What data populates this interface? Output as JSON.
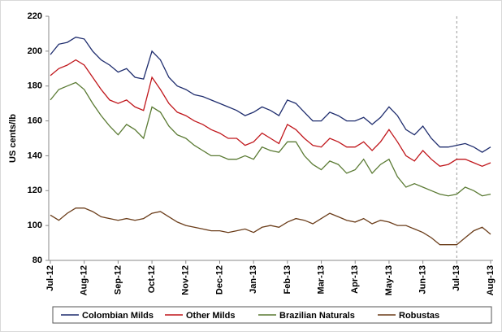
{
  "chart_data": {
    "type": "line",
    "y_label": "US cents/lb",
    "categories": [
      "Jul-12",
      null,
      null,
      null,
      "Aug-12",
      null,
      null,
      null,
      "Sep-12",
      null,
      null,
      null,
      "Oct-12",
      null,
      null,
      null,
      "Nov-12",
      null,
      null,
      null,
      "Dec-12",
      null,
      null,
      null,
      "Jan-13",
      null,
      null,
      null,
      "Feb-13",
      null,
      null,
      null,
      "Mar-13",
      null,
      null,
      null,
      "Apr-13",
      null,
      null,
      null,
      "May-13",
      null,
      null,
      null,
      "Jun-13",
      null,
      null,
      null,
      "Jul-13",
      null,
      null,
      null,
      "Aug-13"
    ],
    "series": [
      {
        "name": "Colombian Milds",
        "color": "#1f2d6e",
        "values": [
          198,
          204,
          205,
          208,
          207,
          200,
          195,
          192,
          188,
          190,
          185,
          184,
          200,
          195,
          185,
          180,
          178,
          175,
          174,
          172,
          170,
          168,
          166,
          163,
          165,
          168,
          166,
          163,
          172,
          170,
          165,
          160,
          160,
          165,
          163,
          160,
          160,
          162,
          158,
          162,
          168,
          163,
          155,
          152,
          157,
          150,
          145,
          145,
          146,
          147,
          145,
          142,
          145
        ]
      },
      {
        "name": "Other Milds",
        "color": "#c0161b",
        "values": [
          186,
          190,
          192,
          195,
          192,
          185,
          178,
          172,
          170,
          172,
          168,
          166,
          185,
          178,
          170,
          165,
          163,
          160,
          158,
          155,
          153,
          150,
          150,
          146,
          148,
          153,
          150,
          147,
          158,
          155,
          150,
          146,
          145,
          150,
          148,
          145,
          145,
          148,
          143,
          148,
          155,
          148,
          140,
          137,
          143,
          138,
          134,
          135,
          138,
          138,
          136,
          134,
          136
        ]
      },
      {
        "name": "Brazilian Naturals",
        "color": "#5a7a33",
        "values": [
          172,
          178,
          180,
          182,
          178,
          170,
          163,
          157,
          152,
          158,
          155,
          150,
          168,
          165,
          157,
          152,
          150,
          146,
          143,
          140,
          140,
          138,
          138,
          140,
          138,
          145,
          143,
          142,
          148,
          148,
          140,
          135,
          132,
          137,
          135,
          130,
          132,
          138,
          130,
          135,
          138,
          128,
          122,
          124,
          122,
          120,
          118,
          117,
          118,
          122,
          120,
          117,
          118
        ]
      },
      {
        "name": "Robustas",
        "color": "#6b3d1a",
        "values": [
          106,
          103,
          107,
          110,
          110,
          108,
          105,
          104,
          103,
          104,
          103,
          104,
          107,
          108,
          105,
          102,
          100,
          99,
          98,
          97,
          97,
          96,
          97,
          98,
          96,
          99,
          100,
          99,
          102,
          104,
          103,
          101,
          104,
          107,
          105,
          103,
          102,
          104,
          101,
          103,
          102,
          100,
          100,
          98,
          96,
          93,
          89,
          89,
          89,
          93,
          97,
          99,
          95
        ]
      }
    ],
    "ylim": [
      80,
      220
    ],
    "yticks": [
      80,
      100,
      120,
      140,
      160,
      180,
      200,
      220
    ],
    "grid": false,
    "legend": "bottom"
  }
}
